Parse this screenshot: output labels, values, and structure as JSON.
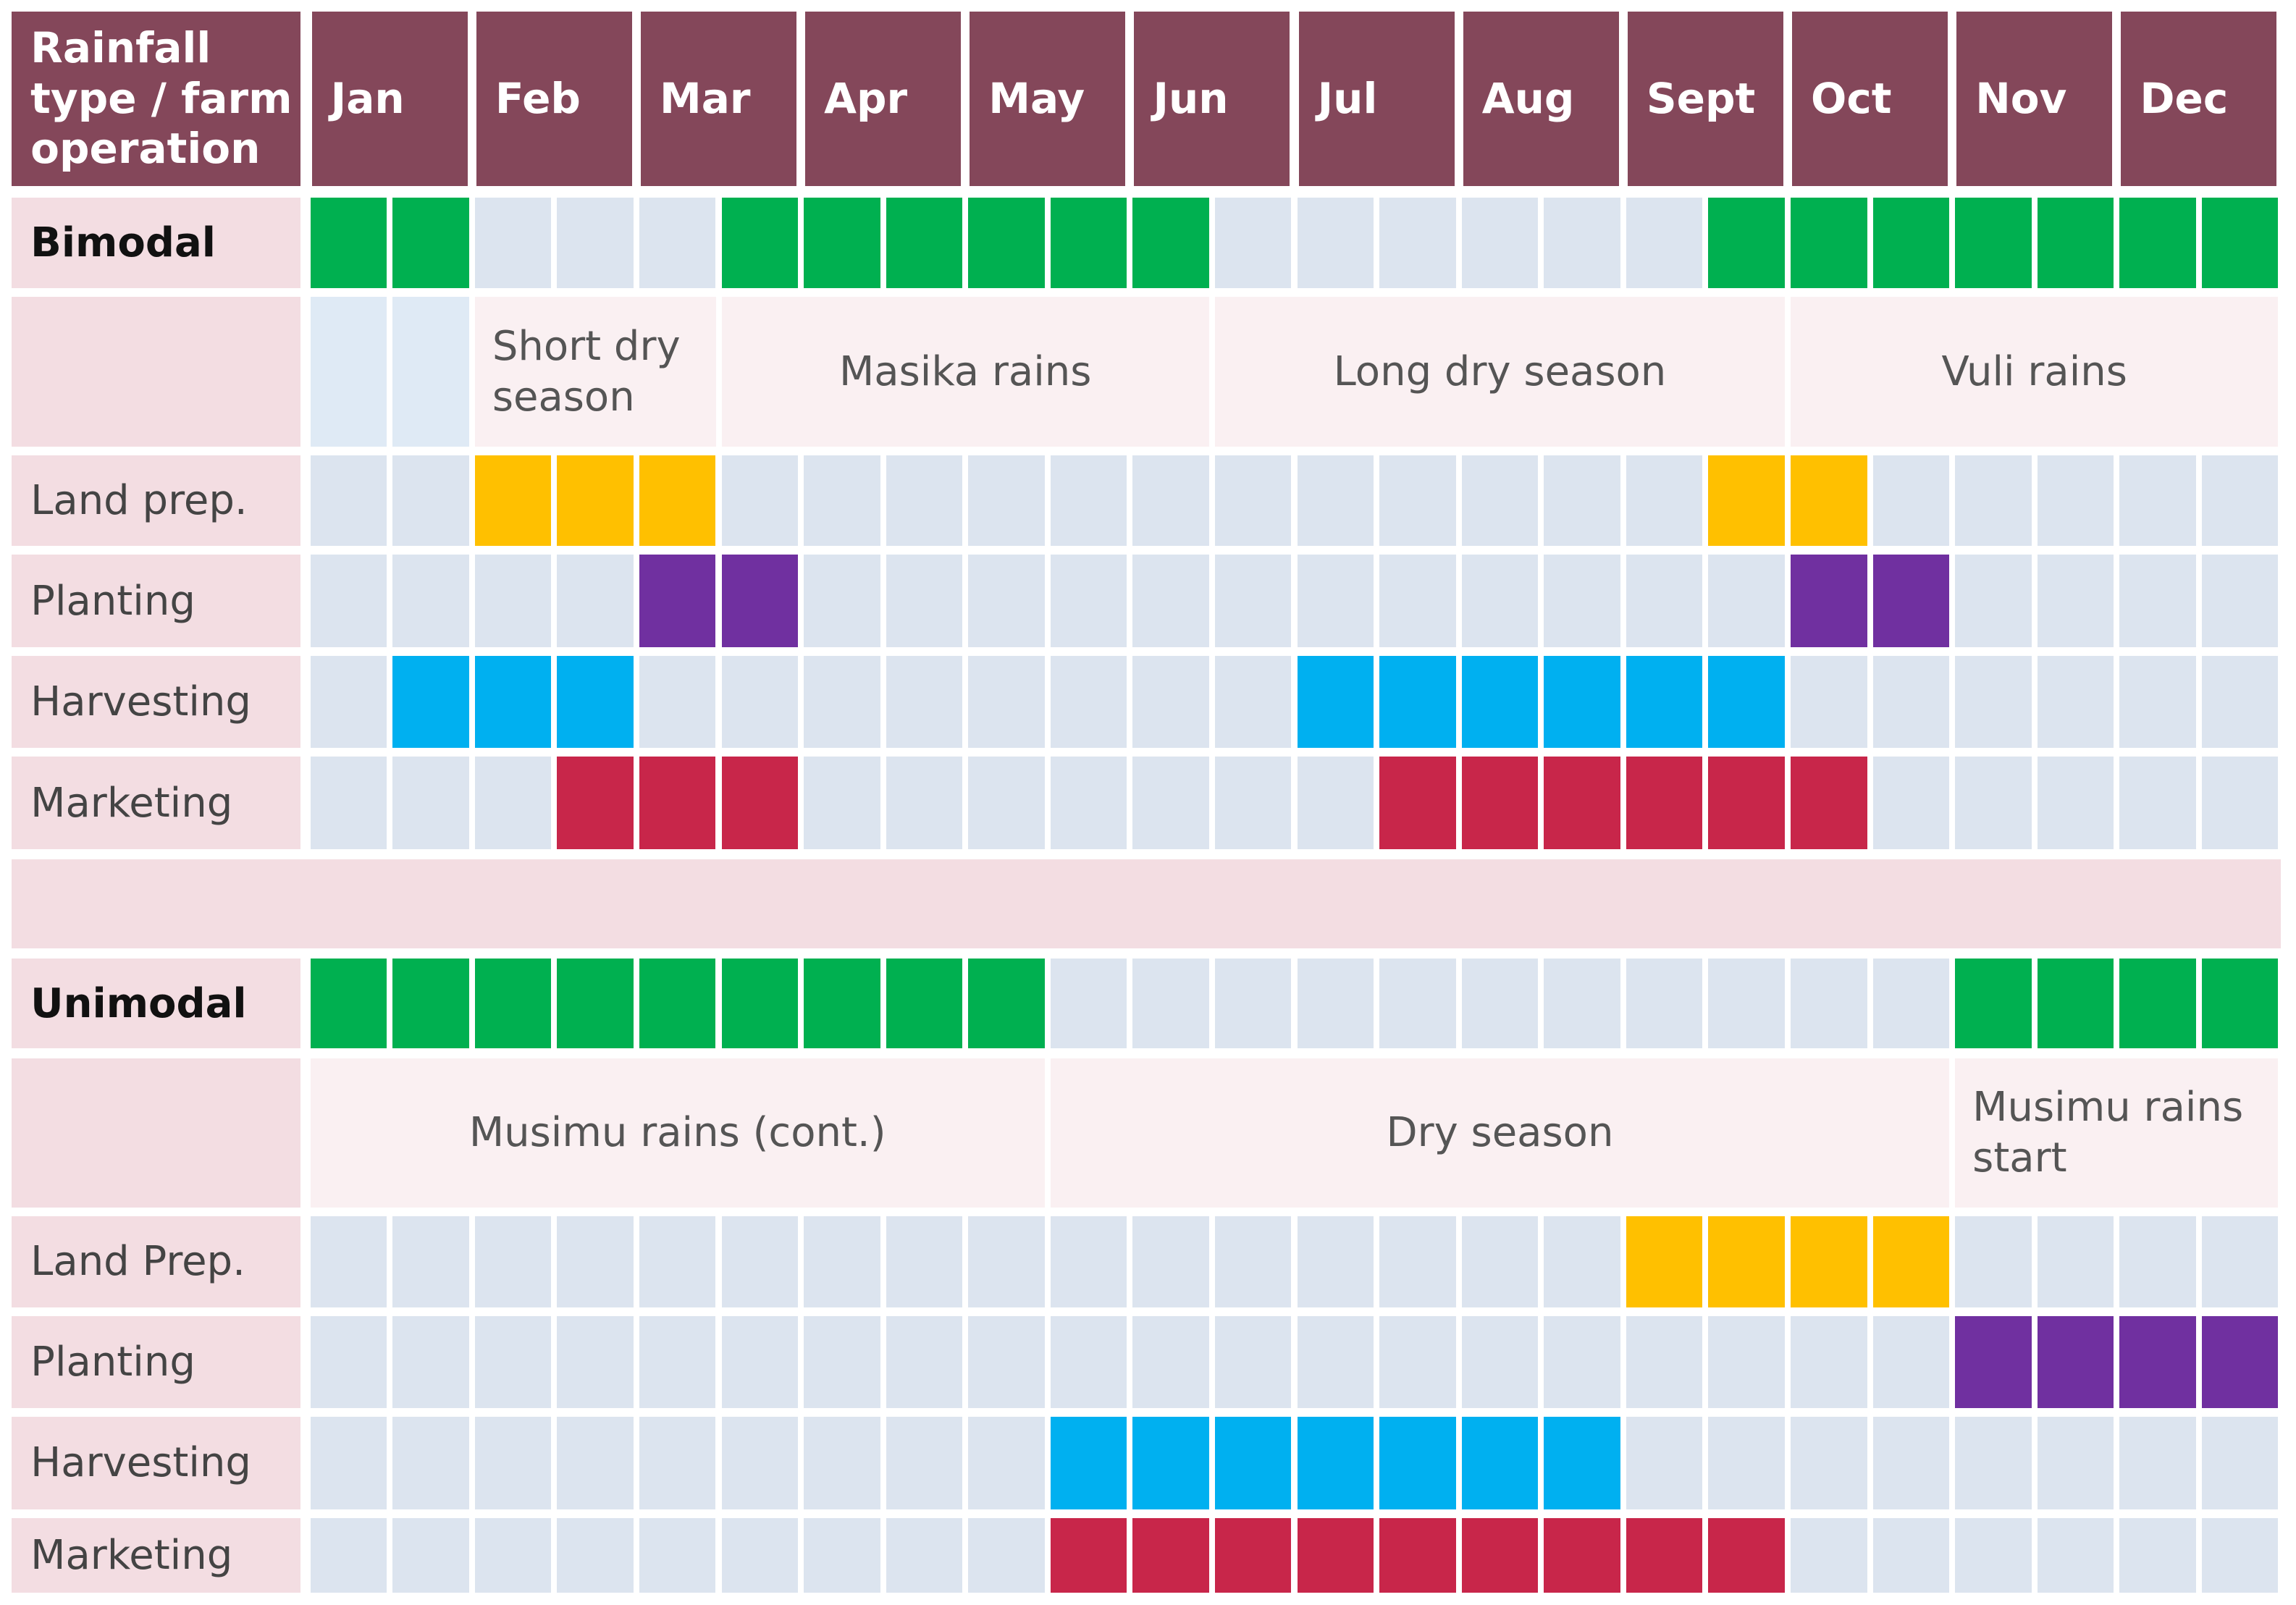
{
  "header": {
    "corner": "Rainfall type / farm operation",
    "months": [
      "Jan",
      "Feb",
      "Mar",
      "Apr",
      "May",
      "Jun",
      "Jul",
      "Aug",
      "Sept",
      "Oct",
      "Nov",
      "Dec"
    ]
  },
  "groups": [
    {
      "name": "Bimodal",
      "rain": {
        "color": "#00b050",
        "cells": [
          1,
          1,
          0,
          0,
          0,
          1,
          1,
          1,
          1,
          1,
          1,
          0,
          0,
          0,
          0,
          0,
          0,
          1,
          1,
          1,
          1,
          1,
          1,
          1
        ]
      },
      "seasons": [
        {
          "columns": 2
        },
        {
          "label": "Short dry season",
          "columns": 3
        },
        {
          "label": "Masika rains",
          "columns": 6
        },
        {
          "label": "Long dry season",
          "columns": 7
        },
        {
          "label": "Vuli rains",
          "columns": 6
        }
      ],
      "operations": [
        {
          "label": "Land prep.",
          "color": "#ffc000",
          "cells": [
            0,
            0,
            1,
            1,
            1,
            0,
            0,
            0,
            0,
            0,
            0,
            0,
            0,
            0,
            0,
            0,
            0,
            1,
            1,
            0,
            0,
            0,
            0,
            0
          ]
        },
        {
          "label": "Planting",
          "color": "#7030a0",
          "cells": [
            0,
            0,
            0,
            0,
            1,
            1,
            0,
            0,
            0,
            0,
            0,
            0,
            0,
            0,
            0,
            0,
            0,
            0,
            1,
            1,
            0,
            0,
            0,
            0
          ]
        },
        {
          "label": "Harvesting",
          "color": "#00b0f0",
          "cells": [
            0,
            1,
            1,
            1,
            0,
            0,
            0,
            0,
            0,
            0,
            0,
            0,
            1,
            1,
            1,
            1,
            1,
            1,
            0,
            0,
            0,
            0,
            0,
            0
          ]
        },
        {
          "label": "Marketing",
          "color": "#c8264a",
          "cells": [
            0,
            0,
            0,
            1,
            1,
            1,
            0,
            0,
            0,
            0,
            0,
            0,
            0,
            1,
            1,
            1,
            1,
            1,
            1,
            0,
            0,
            0,
            0,
            0
          ]
        }
      ]
    },
    {
      "name": "Unimodal",
      "rain": {
        "color": "#00b050",
        "cells": [
          1,
          1,
          1,
          1,
          1,
          1,
          1,
          1,
          1,
          0,
          0,
          0,
          0,
          0,
          0,
          0,
          0,
          0,
          0,
          0,
          1,
          1,
          1,
          1
        ]
      },
      "seasons": [
        {
          "label": "Musimu rains (cont.)",
          "columns": 9
        },
        {
          "label": "Dry season",
          "columns": 11
        },
        {
          "label": "Musimu rains start",
          "columns": 4
        }
      ],
      "operations": [
        {
          "label": "Land Prep.",
          "color": "#ffc000",
          "cells": [
            0,
            0,
            0,
            0,
            0,
            0,
            0,
            0,
            0,
            0,
            0,
            0,
            0,
            0,
            0,
            0,
            1,
            1,
            1,
            1,
            0,
            0,
            0,
            0
          ]
        },
        {
          "label": "Planting",
          "color": "#7030a0",
          "cells": [
            0,
            0,
            0,
            0,
            0,
            0,
            0,
            0,
            0,
            0,
            0,
            0,
            0,
            0,
            0,
            0,
            0,
            0,
            0,
            0,
            1,
            1,
            1,
            1
          ]
        },
        {
          "label": "Harvesting",
          "color": "#00b0f0",
          "cells": [
            0,
            0,
            0,
            0,
            0,
            0,
            0,
            0,
            0,
            1,
            1,
            1,
            1,
            1,
            1,
            1,
            0,
            0,
            0,
            0,
            0,
            0,
            0,
            0
          ]
        },
        {
          "label": "Marketing",
          "color": "#c8264a",
          "cells": [
            0,
            0,
            0,
            0,
            0,
            0,
            0,
            0,
            0,
            1,
            1,
            1,
            1,
            1,
            1,
            1,
            1,
            1,
            0,
            0,
            0,
            0,
            0,
            0
          ]
        }
      ]
    }
  ]
}
